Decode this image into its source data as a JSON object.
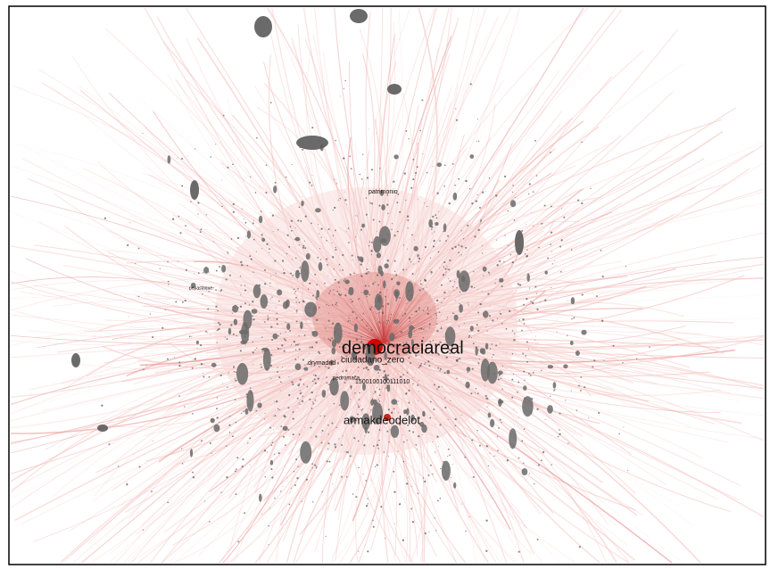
{
  "nodes": [
    {
      "label": "democraciareal"
    },
    {
      "label": "armakdeodelot"
    },
    {
      "label": "ciudadano_zero"
    },
    {
      "label": "drymadrid"
    },
    {
      "label": "patrimonio"
    },
    {
      "label": "1500100100111010"
    },
    {
      "label": "pedromaca"
    },
    {
      "label": "pepastaque"
    }
  ]
}
